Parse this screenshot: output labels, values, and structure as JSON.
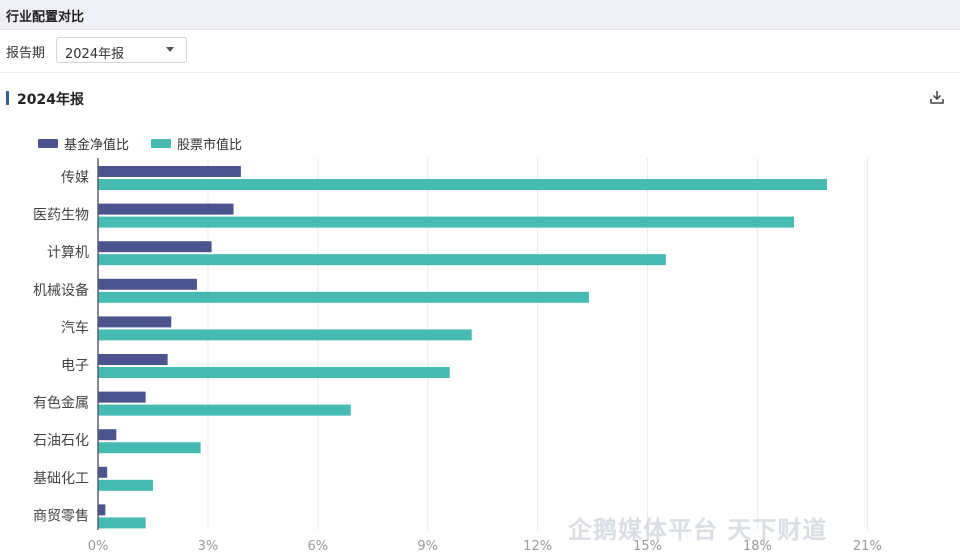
{
  "header": {
    "title": "行业配置对比"
  },
  "filter": {
    "label": "报告期",
    "value": "2024年报"
  },
  "section": {
    "title": "2024年报",
    "download_icon": "download-icon"
  },
  "legend": [
    {
      "label": "基金净值比",
      "color": "#4c5490"
    },
    {
      "label": "股票市值比",
      "color": "#45bbb3"
    }
  ],
  "watermark": "企鹅媒体平台 天下财道",
  "chart_data": {
    "type": "bar",
    "orientation": "horizontal",
    "categories": [
      "传媒",
      "医药生物",
      "计算机",
      "机械设备",
      "汽车",
      "电子",
      "有色金属",
      "石油石化",
      "基础化工",
      "商贸零售"
    ],
    "series": [
      {
        "name": "基金净值比",
        "color": "#4c5490",
        "values": [
          3.9,
          3.7,
          3.1,
          2.7,
          2.0,
          1.9,
          1.3,
          0.5,
          0.25,
          0.2
        ]
      },
      {
        "name": "股票市值比",
        "color": "#45bbb3",
        "values": [
          19.9,
          19.0,
          15.5,
          13.4,
          10.2,
          9.6,
          6.9,
          2.8,
          1.5,
          1.3
        ]
      }
    ],
    "xlim": [
      0,
      22
    ],
    "xticks": [
      0,
      3,
      6,
      9,
      12,
      15,
      18,
      21
    ],
    "xtick_labels": [
      "0%",
      "3%",
      "6%",
      "9%",
      "12%",
      "15%",
      "18%",
      "21%"
    ],
    "grid": true,
    "legend_position": "top-left"
  }
}
